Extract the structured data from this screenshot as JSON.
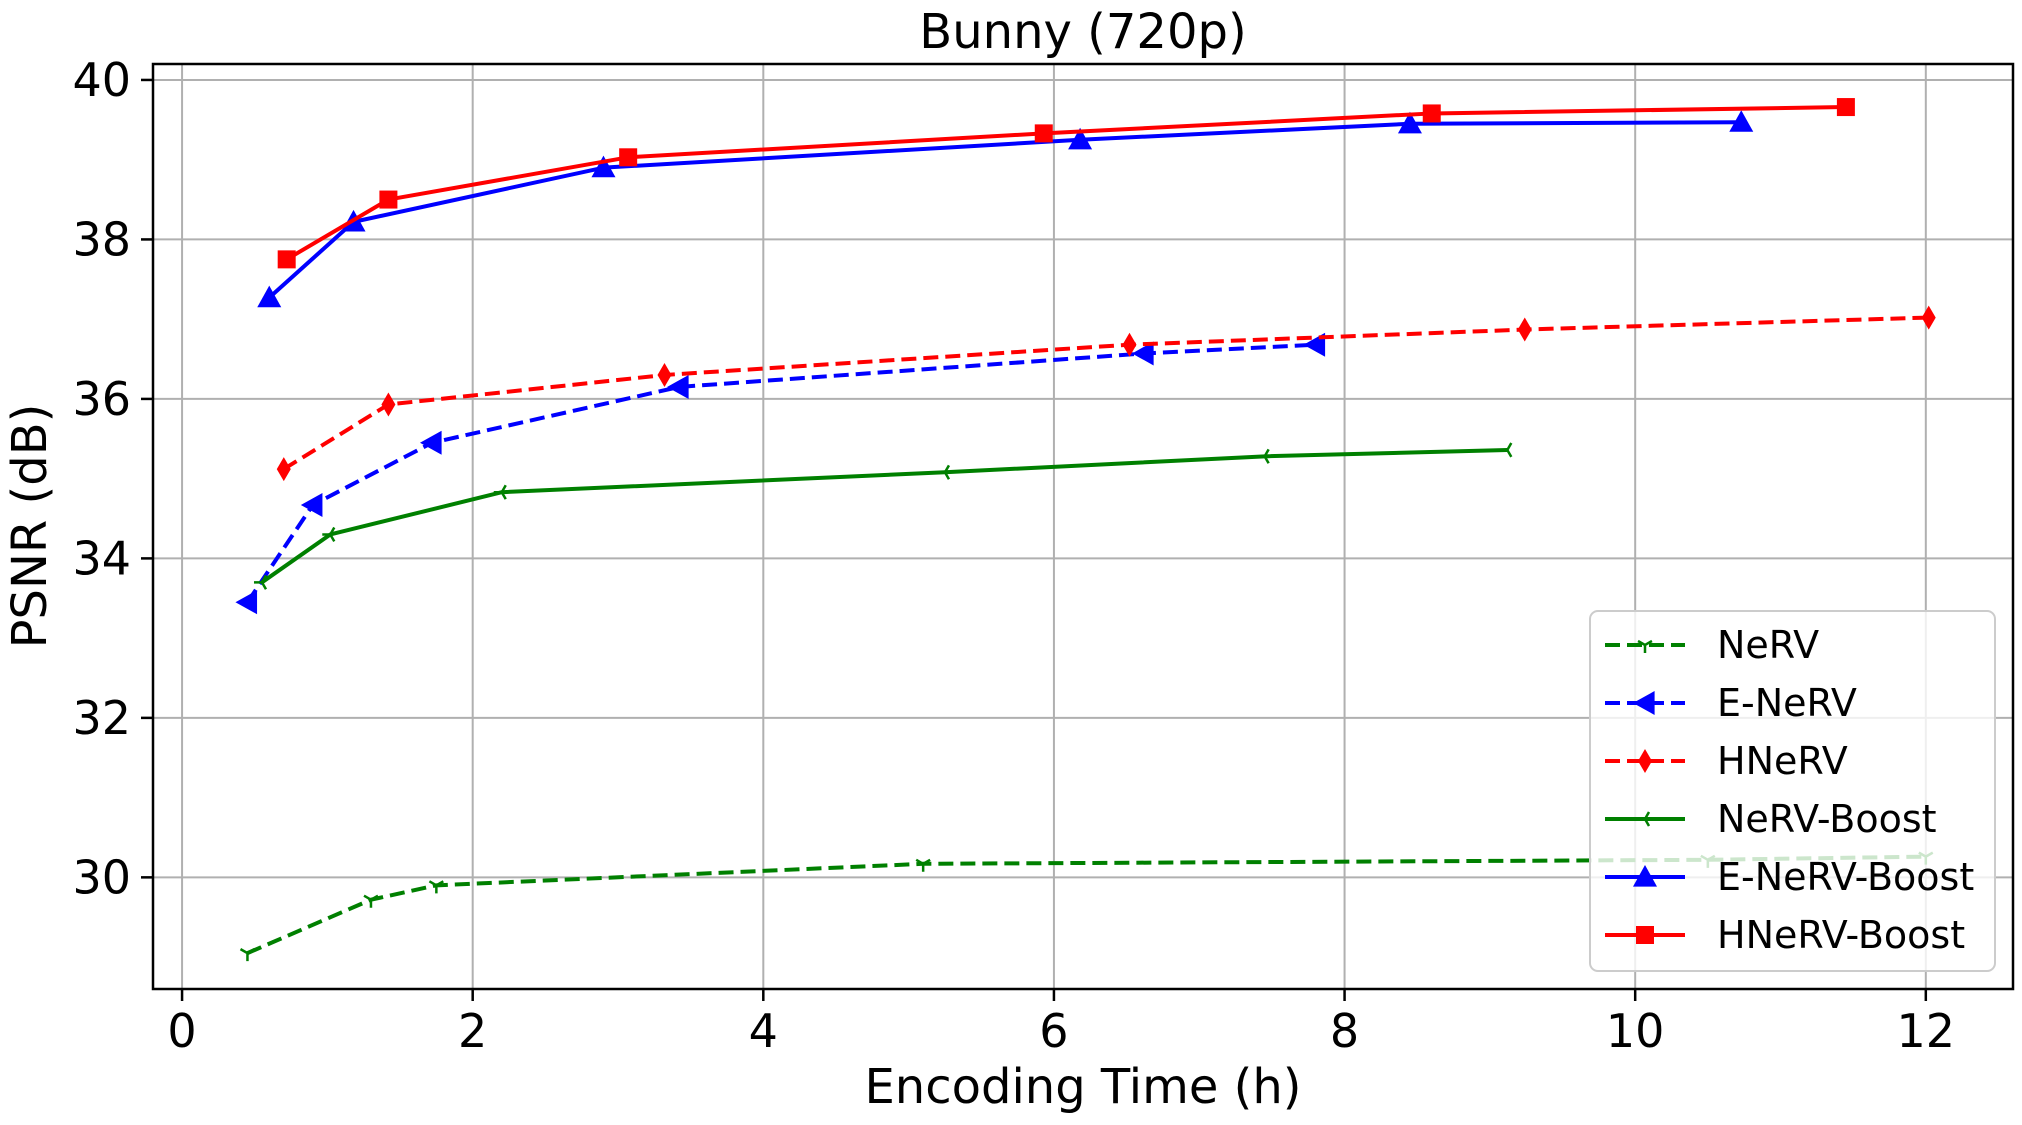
{
  "chart_data": {
    "type": "line",
    "title": "Bunny (720p)",
    "xlabel": "Encoding Time (h)",
    "ylabel": "PSNR (dB)",
    "xlim": [
      -0.2,
      12.6
    ],
    "ylim": [
      28.6,
      40.2
    ],
    "xticks": [
      0,
      2,
      4,
      6,
      8,
      10,
      12
    ],
    "yticks": [
      30,
      32,
      34,
      36,
      38,
      40
    ],
    "grid": true,
    "legend_position": "lower-right",
    "series": [
      {
        "name": "NeRV",
        "color": "#008000",
        "dash": "dashed",
        "marker": "tri_down",
        "x": [
          0.45,
          1.3,
          1.75,
          5.1,
          10.5,
          12.0
        ],
        "y": [
          29.05,
          29.72,
          29.9,
          30.17,
          30.22,
          30.26
        ]
      },
      {
        "name": "E-NeRV",
        "color": "#0000ff",
        "dash": "dashed",
        "marker": "triangle_left",
        "x": [
          0.45,
          0.9,
          1.72,
          3.42,
          6.62,
          7.8
        ],
        "y": [
          33.45,
          34.67,
          35.45,
          36.15,
          36.57,
          36.68
        ]
      },
      {
        "name": "HNeRV",
        "color": "#ff0000",
        "dash": "dashed",
        "marker": "thin_diamond",
        "x": [
          0.7,
          1.42,
          3.32,
          6.52,
          9.24,
          12.02
        ],
        "y": [
          35.12,
          35.93,
          36.3,
          36.68,
          36.87,
          37.02
        ]
      },
      {
        "name": "NeRV-Boost",
        "color": "#008000",
        "dash": "solid",
        "marker": "tri_left",
        "x": [
          0.55,
          1.02,
          2.2,
          5.25,
          7.45,
          9.12
        ],
        "y": [
          33.7,
          34.3,
          34.83,
          35.08,
          35.28,
          35.36
        ]
      },
      {
        "name": "E-NeRV-Boost",
        "color": "#0000ff",
        "dash": "solid",
        "marker": "triangle_up",
        "x": [
          0.6,
          1.18,
          2.9,
          6.18,
          8.45,
          10.73
        ],
        "y": [
          37.27,
          38.22,
          38.9,
          39.25,
          39.45,
          39.47
        ]
      },
      {
        "name": "HNeRV-Boost",
        "color": "#ff0000",
        "dash": "solid",
        "marker": "square",
        "x": [
          0.72,
          1.42,
          3.07,
          5.93,
          8.6,
          11.45
        ],
        "y": [
          37.75,
          38.5,
          39.03,
          39.33,
          39.58,
          39.66
        ]
      }
    ]
  }
}
